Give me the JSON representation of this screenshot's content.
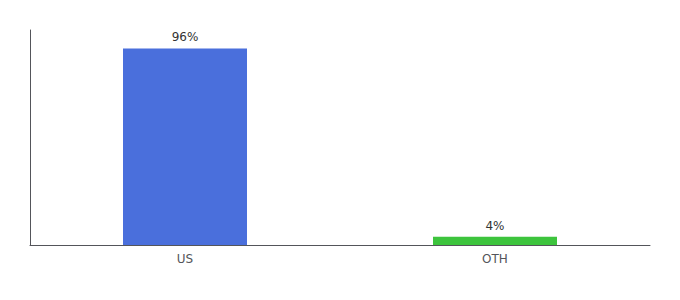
{
  "chart_data": {
    "type": "bar",
    "categories": [
      "US",
      "OTH"
    ],
    "values": [
      96,
      4
    ],
    "value_labels": [
      "96%",
      "4%"
    ],
    "colors": [
      "#4a6fdc",
      "#3dc43d"
    ],
    "ylim": [
      0,
      105
    ],
    "grid": false,
    "data_labels": true,
    "tick_labels": "x"
  }
}
